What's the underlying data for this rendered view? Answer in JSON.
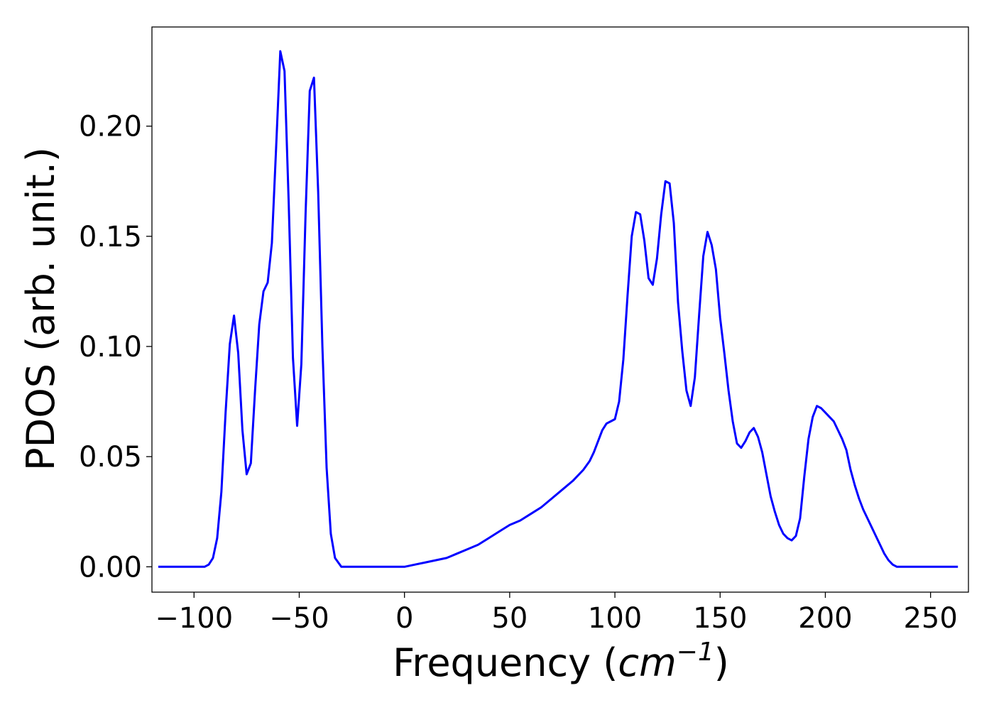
{
  "chart_data": {
    "type": "line",
    "title": "",
    "xlabel": {
      "prefix": "Frequency (",
      "unit": "cm",
      "exponent": "−1",
      "suffix": ")"
    },
    "ylabel": "PDOS (arb. unit.)",
    "xlim": [
      -120,
      268
    ],
    "ylim": [
      -0.0115,
      0.245
    ],
    "x_ticks": [
      -100,
      -50,
      0,
      50,
      100,
      150,
      200,
      250
    ],
    "x_tick_labels": [
      "−100",
      "−50",
      "0",
      "50",
      "100",
      "150",
      "200",
      "250"
    ],
    "y_ticks": [
      0.0,
      0.05,
      0.1,
      0.15,
      0.2
    ],
    "y_tick_labels": [
      "0.00",
      "0.05",
      "0.10",
      "0.15",
      "0.20"
    ],
    "grid": false,
    "legend": "none",
    "series": [
      {
        "color": "#0000ff",
        "x": [
          -117,
          -95,
          -93,
          -91,
          -89,
          -87,
          -85,
          -83,
          -81,
          -79,
          -77,
          -75,
          -73,
          -71,
          -69,
          -67,
          -65,
          -63,
          -61,
          -59,
          -57,
          -55,
          -53,
          -51,
          -49,
          -47,
          -45,
          -43,
          -41,
          -39,
          -37,
          -35,
          -33,
          -30,
          -20,
          -10,
          0,
          5,
          10,
          15,
          20,
          25,
          30,
          35,
          40,
          45,
          50,
          55,
          60,
          65,
          70,
          75,
          80,
          85,
          88,
          90,
          92,
          94,
          96,
          98,
          100,
          102,
          104,
          106,
          108,
          110,
          112,
          114,
          116,
          118,
          120,
          122,
          124,
          126,
          128,
          130,
          132,
          134,
          136,
          138,
          140,
          142,
          144,
          146,
          148,
          150,
          152,
          154,
          156,
          158,
          160,
          162,
          164,
          166,
          168,
          170,
          172,
          174,
          176,
          178,
          180,
          182,
          184,
          186,
          188,
          190,
          192,
          194,
          196,
          198,
          200,
          202,
          204,
          206,
          208,
          210,
          212,
          214,
          216,
          218,
          220,
          222,
          224,
          226,
          228,
          230,
          232,
          234,
          236,
          238,
          240,
          250,
          263
        ],
        "y": [
          0.0,
          0.0,
          0.001,
          0.004,
          0.013,
          0.034,
          0.07,
          0.101,
          0.114,
          0.097,
          0.062,
          0.042,
          0.047,
          0.08,
          0.11,
          0.125,
          0.129,
          0.147,
          0.19,
          0.234,
          0.225,
          0.165,
          0.095,
          0.064,
          0.092,
          0.16,
          0.216,
          0.222,
          0.17,
          0.1,
          0.045,
          0.015,
          0.004,
          0.0,
          0.0,
          0.0,
          0.0,
          0.001,
          0.002,
          0.003,
          0.004,
          0.006,
          0.008,
          0.01,
          0.013,
          0.016,
          0.019,
          0.021,
          0.024,
          0.027,
          0.031,
          0.035,
          0.039,
          0.044,
          0.048,
          0.052,
          0.057,
          0.062,
          0.065,
          0.066,
          0.067,
          0.075,
          0.094,
          0.123,
          0.15,
          0.161,
          0.16,
          0.148,
          0.131,
          0.128,
          0.14,
          0.16,
          0.175,
          0.174,
          0.156,
          0.12,
          0.098,
          0.08,
          0.073,
          0.086,
          0.114,
          0.141,
          0.152,
          0.146,
          0.135,
          0.113,
          0.097,
          0.08,
          0.066,
          0.056,
          0.054,
          0.057,
          0.061,
          0.063,
          0.059,
          0.052,
          0.042,
          0.032,
          0.025,
          0.019,
          0.015,
          0.013,
          0.012,
          0.014,
          0.022,
          0.041,
          0.058,
          0.068,
          0.073,
          0.072,
          0.07,
          0.068,
          0.066,
          0.062,
          0.058,
          0.053,
          0.044,
          0.037,
          0.031,
          0.026,
          0.022,
          0.018,
          0.014,
          0.01,
          0.006,
          0.003,
          0.001,
          0.0,
          0.0,
          0.0,
          0.0,
          0.0,
          0.0
        ]
      }
    ]
  }
}
